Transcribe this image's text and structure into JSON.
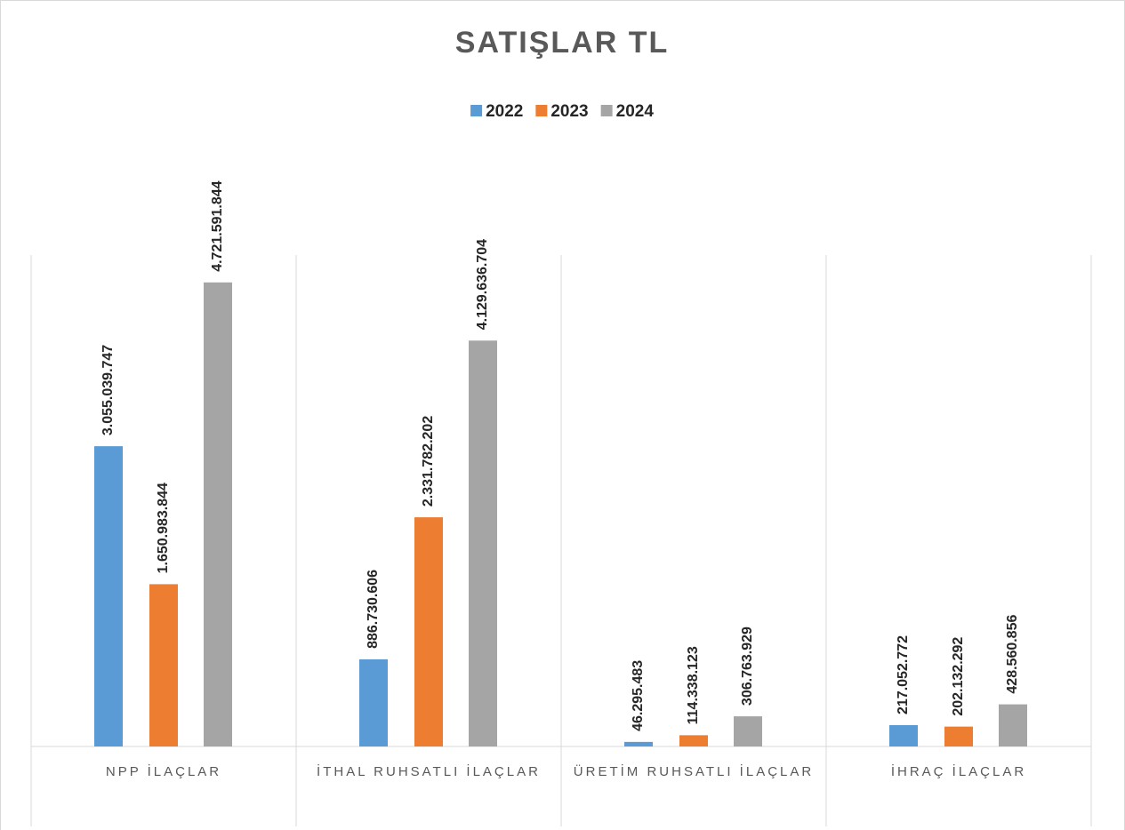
{
  "chart_data": {
    "type": "bar",
    "title": "SATIŞLAR TL",
    "categories": [
      "NPP İLAÇLAR",
      "İTHAL RUHSATLI İLAÇLAR",
      "ÜRETİM RUHSATLI İLAÇLAR",
      "İHRAÇ İLAÇLAR"
    ],
    "series": [
      {
        "name": "2022",
        "color": "#5b9bd5",
        "values": [
          3055039747,
          886730606,
          46295483,
          217052772
        ],
        "value_labels": [
          "3.055.039.747",
          "886.730.606",
          "46.295.483",
          "217.052.772"
        ]
      },
      {
        "name": "2023",
        "color": "#ed7d31",
        "values": [
          1650983844,
          2331782202,
          114338123,
          202132292
        ],
        "value_labels": [
          "1.650.983.844",
          "2.331.782.202",
          "114.338.123",
          "202.132.292"
        ]
      },
      {
        "name": "2024",
        "color": "#a5a5a5",
        "values": [
          4721591844,
          4129636704,
          306763929,
          428560856
        ],
        "value_labels": [
          "4.721.591.844",
          "4.129.636.704",
          "306.763.929",
          "428.560.856"
        ]
      }
    ],
    "ylim": [
      0,
      5000000000
    ],
    "legend": "top"
  }
}
